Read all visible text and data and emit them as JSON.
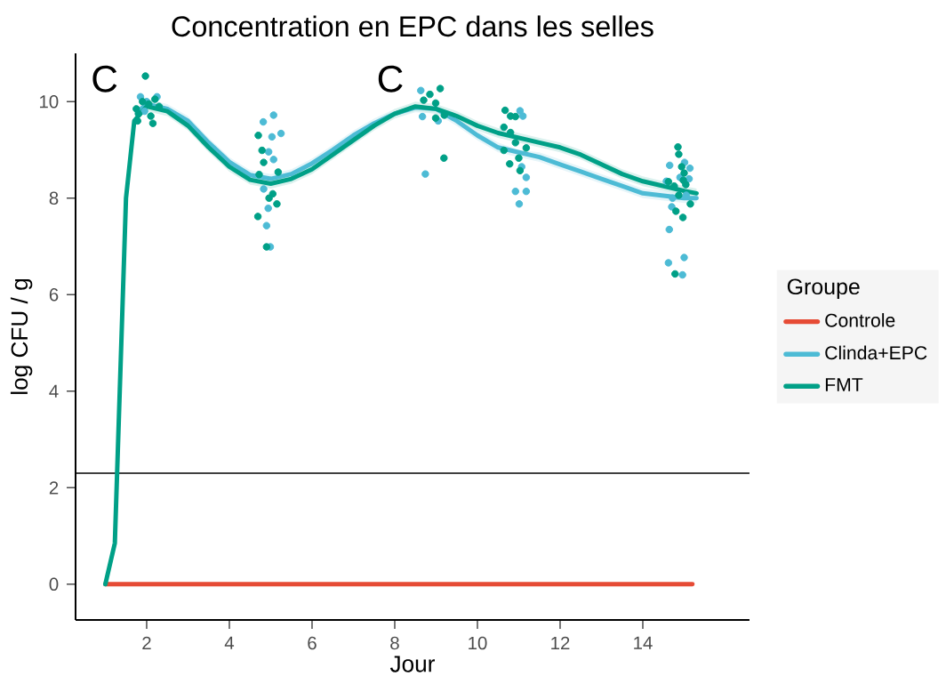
{
  "chart_data": {
    "type": "line",
    "title": "Concentration en EPC dans les selles",
    "xlabel": "Jour",
    "ylabel": "log CFU / g",
    "legend_title": "Groupe",
    "legend": "right",
    "xlim": [
      0.28,
      16.58
    ],
    "ylim": [
      -0.74,
      11.0
    ],
    "xticks": [
      2,
      4,
      6,
      8,
      10,
      12,
      14
    ],
    "yticks": [
      0,
      2,
      4,
      6,
      8,
      10
    ],
    "ref_lines": [
      {
        "axis": "y",
        "value": 2.3,
        "color": "#000000"
      }
    ],
    "annotations": [
      "C",
      "C"
    ],
    "series": [
      {
        "name": "Controle",
        "type": "line",
        "color": "#e64b35",
        "x": [
          1,
          15.2
        ],
        "values": [
          0,
          0
        ]
      },
      {
        "name": "Clinda+EPC",
        "type": "line",
        "color": "#4dbbd5",
        "x": [
          1.8,
          2,
          2.5,
          3,
          3.5,
          4,
          4.5,
          5,
          5.5,
          6,
          6.5,
          7,
          7.5,
          8,
          8.5,
          9,
          9.5,
          10,
          10.5,
          11,
          11.5,
          12,
          12.5,
          13,
          13.5,
          14,
          14.5,
          15,
          15.3
        ],
        "values": [
          9.8,
          9.95,
          9.85,
          9.6,
          9.15,
          8.75,
          8.48,
          8.4,
          8.5,
          8.72,
          9.0,
          9.3,
          9.55,
          9.75,
          9.88,
          9.85,
          9.6,
          9.3,
          9.05,
          8.95,
          8.85,
          8.7,
          8.55,
          8.4,
          8.25,
          8.1,
          8.05,
          8.0,
          8.0
        ],
        "lower": [
          9.7,
          9.85,
          9.75,
          9.5,
          9.05,
          8.65,
          8.38,
          8.3,
          8.4,
          8.62,
          8.9,
          9.2,
          9.45,
          9.65,
          9.78,
          9.75,
          9.5,
          9.2,
          8.95,
          8.85,
          8.75,
          8.6,
          8.45,
          8.3,
          8.15,
          8.0,
          7.95,
          7.9,
          7.9
        ],
        "upper": [
          9.9,
          10.05,
          9.95,
          9.7,
          9.25,
          8.85,
          8.58,
          8.5,
          8.6,
          8.82,
          9.1,
          9.4,
          9.65,
          9.85,
          9.98,
          9.95,
          9.7,
          9.4,
          9.15,
          9.0,
          8.95,
          8.8,
          8.65,
          8.5,
          8.35,
          8.2,
          8.15,
          8.1,
          8.1
        ]
      },
      {
        "name": "FMT",
        "type": "line",
        "color": "#00a087",
        "x": [
          1,
          1.23,
          1.5,
          1.7,
          2,
          2.5,
          3,
          3.5,
          4,
          4.5,
          5,
          5.5,
          6,
          6.5,
          7,
          7.5,
          8,
          8.5,
          9,
          9.5,
          10,
          10.5,
          11,
          11.5,
          12,
          12.5,
          13,
          13.5,
          14,
          14.5,
          15,
          15.3
        ],
        "values": [
          0,
          0.85,
          8.0,
          9.6,
          9.9,
          9.8,
          9.5,
          9.05,
          8.65,
          8.38,
          8.3,
          8.4,
          8.6,
          8.9,
          9.2,
          9.5,
          9.75,
          9.9,
          9.85,
          9.7,
          9.5,
          9.35,
          9.25,
          9.15,
          9.05,
          8.9,
          8.7,
          8.5,
          8.35,
          8.25,
          8.15,
          8.1
        ],
        "lower": [
          0,
          0.85,
          8.0,
          9.6,
          9.8,
          9.7,
          9.4,
          8.95,
          8.55,
          8.28,
          8.2,
          8.3,
          8.5,
          8.8,
          9.1,
          9.4,
          9.65,
          9.8,
          9.75,
          9.6,
          9.4,
          9.25,
          9.15,
          9.05,
          8.95,
          8.8,
          8.6,
          8.4,
          8.25,
          8.15,
          8.05,
          8.0
        ],
        "upper": [
          0,
          0.85,
          8.0,
          9.6,
          10.0,
          9.9,
          9.6,
          9.15,
          8.75,
          8.48,
          8.4,
          8.5,
          8.7,
          9.0,
          9.3,
          9.6,
          9.85,
          10.0,
          9.95,
          9.8,
          9.6,
          9.45,
          9.35,
          9.25,
          9.15,
          9.0,
          8.8,
          8.6,
          8.45,
          8.35,
          8.25,
          8.2
        ]
      },
      {
        "type": "scatter",
        "color": "#4dbbd5",
        "x": [
          1.85,
          2.0,
          2.25,
          1.95,
          5.07,
          4.82,
          5.25,
          5.03,
          4.95,
          5.07,
          4.83,
          4.94,
          4.9,
          4.99,
          8.63,
          8.74,
          8.67,
          9.05,
          11.03,
          11.1,
          11.18,
          10.92,
          11.18,
          11.01,
          11.07,
          14.65,
          15.01,
          15.14,
          14.9,
          15.12,
          14.57,
          14.72,
          15.05,
          14.7,
          14.64,
          15.0,
          14.62,
          14.96
        ],
        "values": [
          10.1,
          10.0,
          10.1,
          9.8,
          9.72,
          9.58,
          9.34,
          9.27,
          8.96,
          8.8,
          8.19,
          7.79,
          7.43,
          6.99,
          10.23,
          8.5,
          9.69,
          9.6,
          9.81,
          9.7,
          8.43,
          8.14,
          8.14,
          7.88,
          8.65,
          8.68,
          8.74,
          8.62,
          8.43,
          8.4,
          8.35,
          8.0,
          8.06,
          7.82,
          7.35,
          6.77,
          6.66,
          6.41
        ]
      },
      {
        "type": "scatter",
        "color": "#00a087",
        "x": [
          1.97,
          1.75,
          1.8,
          1.9,
          2.05,
          2.2,
          1.78,
          2.15,
          2.3,
          2.1,
          4.7,
          4.79,
          4.83,
          4.72,
          5.18,
          5.05,
          4.96,
          5.15,
          4.69,
          4.9,
          8.85,
          9.1,
          8.7,
          8.99,
          9.2,
          8.99,
          9.19,
          10.67,
          10.92,
          10.8,
          10.64,
          10.8,
          10.92,
          10.64,
          10.78,
          11.18,
          11.03,
          11.0,
          14.85,
          14.87,
          14.94,
          15.0,
          14.98,
          14.62,
          14.76,
          15.04,
          14.87,
          15.15,
          14.8,
          14.97,
          14.78
        ],
        "values": [
          10.53,
          9.85,
          9.75,
          10.0,
          9.95,
          10.05,
          9.6,
          9.55,
          9.9,
          9.7,
          9.3,
          8.99,
          8.74,
          8.49,
          8.54,
          8.09,
          8.0,
          7.88,
          7.62,
          6.99,
          10.15,
          10.27,
          10.03,
          9.97,
          9.72,
          9.66,
          8.83,
          9.82,
          9.69,
          9.7,
          9.47,
          9.36,
          9.15,
          8.99,
          8.71,
          9.04,
          8.57,
          8.83,
          9.06,
          8.91,
          8.65,
          8.52,
          8.37,
          8.34,
          8.25,
          8.28,
          8.06,
          7.88,
          7.73,
          7.6,
          6.43
        ]
      }
    ]
  }
}
